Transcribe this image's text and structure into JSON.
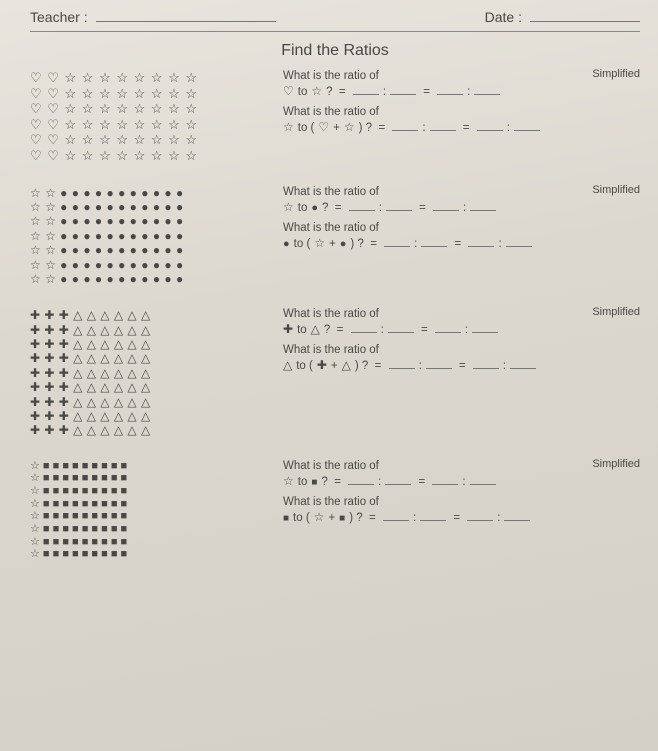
{
  "header": {
    "teacher_label": "Teacher :",
    "date_label": "Date :"
  },
  "title": "Find the Ratios",
  "symbols": {
    "heart": "♡",
    "star": "☆",
    "circle": "●",
    "plus": "✚",
    "triangle": "△",
    "square": "■"
  },
  "sections": [
    {
      "grid": {
        "rows": 6,
        "left_sym": "heart",
        "left_count": 2,
        "right_sym": "star",
        "right_count": 8,
        "row_class": ""
      },
      "q1": {
        "prompt": "What is the ratio of",
        "a": "heart",
        "mid": " to ",
        "b": "star",
        "tail": " ?"
      },
      "q2": {
        "prompt": "What is the ratio of",
        "a": "star",
        "mid": " to ( ",
        "b": "heart",
        "plus": " + ",
        "c": "star",
        "tail": " ) ?"
      },
      "simplified": "Simplified"
    },
    {
      "grid": {
        "rows": 7,
        "left_sym": "star",
        "left_count": 2,
        "right_sym": "circle",
        "right_count": 11,
        "row_class": "small"
      },
      "q1": {
        "prompt": "What is the ratio of",
        "a": "star",
        "mid": " to ",
        "b": "circle",
        "tail": " ?"
      },
      "q2": {
        "prompt": "What is the ratio of",
        "a": "circle",
        "mid": " to ( ",
        "b": "star",
        "plus": " + ",
        "c": "circle",
        "tail": " ) ?"
      },
      "simplified": "Simplified"
    },
    {
      "grid": {
        "rows": 9,
        "left_sym": "plus",
        "left_count": 3,
        "right_sym": "triangle",
        "right_count": 6,
        "row_class": "small"
      },
      "q1": {
        "prompt": "What is the ratio of",
        "a": "plus",
        "mid": " to ",
        "b": "triangle",
        "tail": " ?"
      },
      "q2": {
        "prompt": "What is the ratio of",
        "a": "triangle",
        "mid": " to ( ",
        "b": "plus",
        "plus": " + ",
        "c": "triangle",
        "tail": " ) ?"
      },
      "simplified": "Simplified"
    },
    {
      "grid": {
        "rows": 8,
        "left_sym": "star",
        "left_count": 1,
        "right_sym": "square",
        "right_count": 9,
        "row_class": "tiny"
      },
      "q1": {
        "prompt": "What is the ratio of",
        "a": "star",
        "mid": " to ",
        "b": "square",
        "tail": " ?"
      },
      "q2": {
        "prompt": "What is the ratio of",
        "a": "square",
        "mid": " to ( ",
        "b": "star",
        "plus": " + ",
        "c": "square",
        "tail": " ) ?"
      },
      "simplified": "Simplified"
    }
  ]
}
